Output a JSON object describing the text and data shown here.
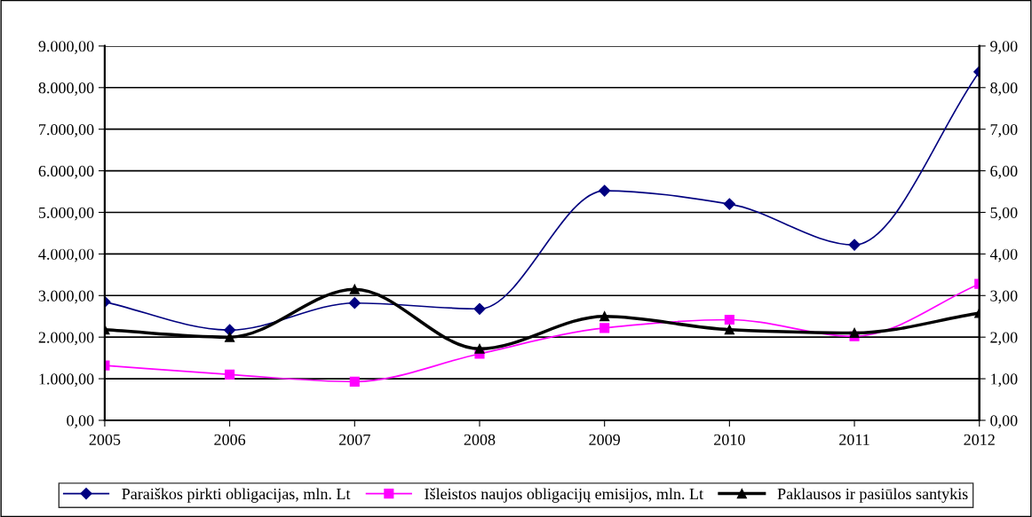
{
  "chart_data": {
    "type": "line",
    "x": [
      2005,
      2006,
      2007,
      2008,
      2009,
      2010,
      2011,
      2012
    ],
    "xlim": [
      2005,
      2012
    ],
    "xticks": [
      2005,
      2006,
      2007,
      2008,
      2009,
      2010,
      2011,
      2012
    ],
    "ylim": [
      0,
      9000
    ],
    "yticks": [
      {
        "value": 0,
        "label": "0,00"
      },
      {
        "value": 1000,
        "label": "1.000,00"
      },
      {
        "value": 2000,
        "label": "2.000,00"
      },
      {
        "value": 3000,
        "label": "3.000,00"
      },
      {
        "value": 4000,
        "label": "4.000,00"
      },
      {
        "value": 5000,
        "label": "5.000,00"
      },
      {
        "value": 6000,
        "label": "6.000,00"
      },
      {
        "value": 7000,
        "label": "7.000,00"
      },
      {
        "value": 8000,
        "label": "8.000,00"
      },
      {
        "value": 9000,
        "label": "9.000,00"
      }
    ],
    "y2lim": [
      0,
      9
    ],
    "y2ticks": [
      {
        "value": 0,
        "label": "0,00"
      },
      {
        "value": 1,
        "label": "1,00"
      },
      {
        "value": 2,
        "label": "2,00"
      },
      {
        "value": 3,
        "label": "3,00"
      },
      {
        "value": 4,
        "label": "4,00"
      },
      {
        "value": 5,
        "label": "5,00"
      },
      {
        "value": 6,
        "label": "6,00"
      },
      {
        "value": 7,
        "label": "7,00"
      },
      {
        "value": 8,
        "label": "8,00"
      },
      {
        "value": 9,
        "label": "9,00"
      }
    ],
    "grid": "y",
    "legend": "bottom",
    "series": [
      {
        "name": "Paraiškos pirkti obligacijas, mln. Lt",
        "color": "#000080",
        "marker": "diamond",
        "values": [
          2850,
          2170,
          2820,
          2680,
          5520,
          5200,
          4220,
          8380
        ]
      },
      {
        "name": "Išleistos naujos obligacijų emisijos, mln. Lt",
        "color": "#ff00ff",
        "marker": "square",
        "values": [
          1320,
          1100,
          930,
          1600,
          2220,
          2420,
          2020,
          3280
        ]
      },
      {
        "name": "Paklausos ir pasiūlos santykis",
        "color": "#000000",
        "marker": "triangle",
        "axis": "y2",
        "values": [
          2.18,
          2.0,
          3.15,
          1.72,
          2.5,
          2.18,
          2.1,
          2.58
        ]
      }
    ]
  }
}
